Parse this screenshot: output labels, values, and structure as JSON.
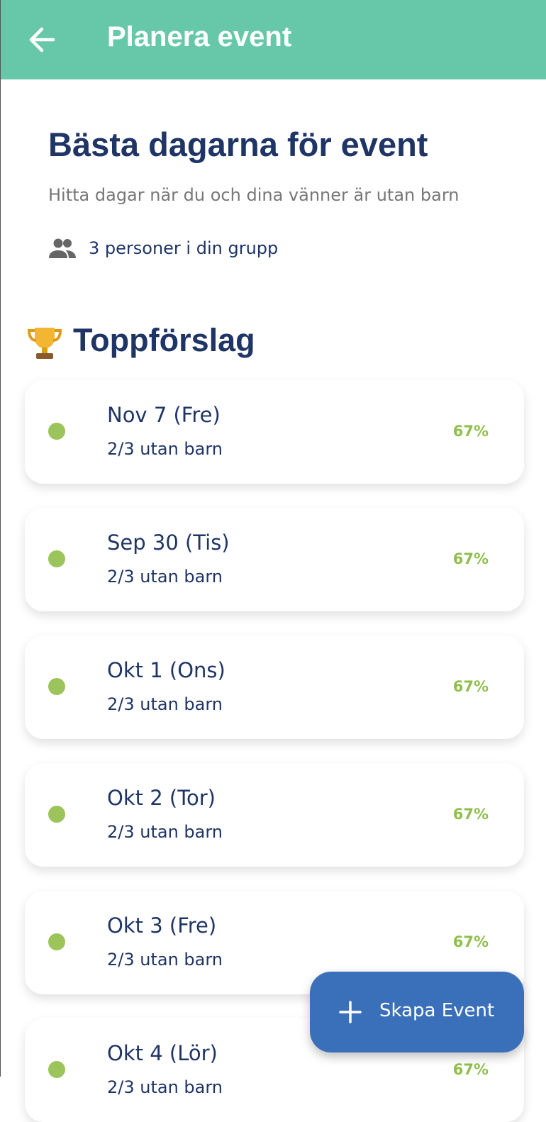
{
  "header": {
    "title": "Planera event"
  },
  "intro": {
    "heading": "Bästa dagarna för event",
    "subtitle": "Hitta dagar när du och dina vänner är utan barn",
    "group": "3 personer i din grupp"
  },
  "section": {
    "title": "Toppförslag"
  },
  "suggestions": [
    {
      "date": "Nov 7 (Fre)",
      "detail": "2/3 utan barn",
      "percent": "67%"
    },
    {
      "date": "Sep 30 (Tis)",
      "detail": "2/3 utan barn",
      "percent": "67%"
    },
    {
      "date": "Okt 1 (Ons)",
      "detail": "2/3 utan barn",
      "percent": "67%"
    },
    {
      "date": "Okt 2 (Tor)",
      "detail": "2/3 utan barn",
      "percent": "67%"
    },
    {
      "date": "Okt 3 (Fre)",
      "detail": "2/3 utan barn",
      "percent": "67%"
    },
    {
      "date": "Okt 4 (Lör)",
      "detail": "2/3 utan barn",
      "percent": "67%"
    }
  ],
  "fab": {
    "label": "Skapa Event"
  }
}
